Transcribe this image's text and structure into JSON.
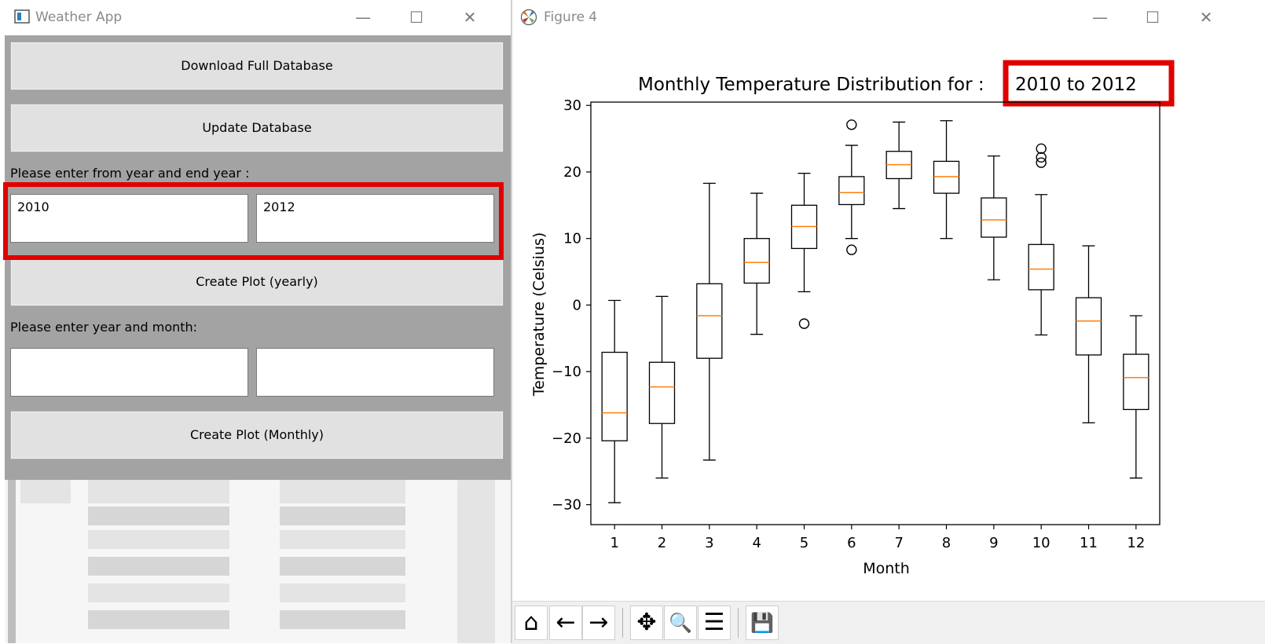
{
  "weather_app": {
    "title": "Weather App",
    "download_button": "Download Full Database",
    "update_button": "Update Database",
    "year_range_prompt": "Please enter from year and end year :",
    "from_year_value": "2010",
    "end_year_value": "2012",
    "yearly_button": "Create Plot (yearly)",
    "year_month_prompt": "Please enter year and month:",
    "year_field_value": "",
    "month_field_value": "",
    "monthly_button": "Create Plot (Monthly)"
  },
  "window_controls": {
    "minimize": "—",
    "maximize": "☐",
    "close": "✕"
  },
  "figure": {
    "title": "Figure 4",
    "toolbar": {
      "home": "⌂",
      "back": "←",
      "forward": "→",
      "pan": "✥",
      "zoom": "🔍",
      "configure": "☰",
      "save": "💾"
    }
  },
  "chart_data": {
    "type": "box",
    "title_prefix": "Monthly Temperature Distribution for : ",
    "title_range": "2010 to 2012",
    "xlabel": "Month",
    "ylabel": "Temperature (Celsius)",
    "ylim": [
      -33,
      30.5
    ],
    "yticks": [
      -30,
      -20,
      -10,
      0,
      10,
      20,
      30
    ],
    "categories": [
      "1",
      "2",
      "3",
      "4",
      "5",
      "6",
      "7",
      "8",
      "9",
      "10",
      "11",
      "12"
    ],
    "boxes": [
      {
        "month": "1",
        "whisker_low": -29.7,
        "q1": -20.4,
        "median": -16.2,
        "q3": -7.1,
        "whisker_high": 0.7,
        "outliers": []
      },
      {
        "month": "2",
        "whisker_low": -26.0,
        "q1": -17.8,
        "median": -12.3,
        "q3": -8.6,
        "whisker_high": 1.3,
        "outliers": []
      },
      {
        "month": "3",
        "whisker_low": -23.3,
        "q1": -8.0,
        "median": -1.6,
        "q3": 3.2,
        "whisker_high": 18.3,
        "outliers": []
      },
      {
        "month": "4",
        "whisker_low": -4.4,
        "q1": 3.3,
        "median": 6.4,
        "q3": 10.0,
        "whisker_high": 16.8,
        "outliers": []
      },
      {
        "month": "5",
        "whisker_low": 2.0,
        "q1": 8.5,
        "median": 11.8,
        "q3": 15.0,
        "whisker_high": 19.8,
        "outliers": [
          -2.8
        ]
      },
      {
        "month": "6",
        "whisker_low": 10.0,
        "q1": 15.1,
        "median": 16.9,
        "q3": 19.3,
        "whisker_high": 24.0,
        "outliers": [
          8.3,
          27.1
        ]
      },
      {
        "month": "7",
        "whisker_low": 14.5,
        "q1": 19.0,
        "median": 21.1,
        "q3": 23.1,
        "whisker_high": 27.5,
        "outliers": []
      },
      {
        "month": "8",
        "whisker_low": 10.0,
        "q1": 16.8,
        "median": 19.3,
        "q3": 21.6,
        "whisker_high": 27.7,
        "outliers": []
      },
      {
        "month": "9",
        "whisker_low": 3.8,
        "q1": 10.2,
        "median": 12.8,
        "q3": 16.1,
        "whisker_high": 22.4,
        "outliers": []
      },
      {
        "month": "10",
        "whisker_low": -4.5,
        "q1": 2.3,
        "median": 5.4,
        "q3": 9.1,
        "whisker_high": 16.6,
        "outliers": [
          21.4,
          22.2,
          23.5
        ]
      },
      {
        "month": "11",
        "whisker_low": -17.7,
        "q1": -7.5,
        "median": -2.4,
        "q3": 1.1,
        "whisker_high": 8.9,
        "outliers": []
      },
      {
        "month": "12",
        "whisker_low": -26.0,
        "q1": -15.7,
        "median": -10.9,
        "q3": -7.4,
        "whisker_high": -1.6,
        "outliers": []
      }
    ],
    "box_color": "#000000",
    "median_color": "#ff7f0e",
    "highlight_color": "#e00000",
    "grid": false
  }
}
